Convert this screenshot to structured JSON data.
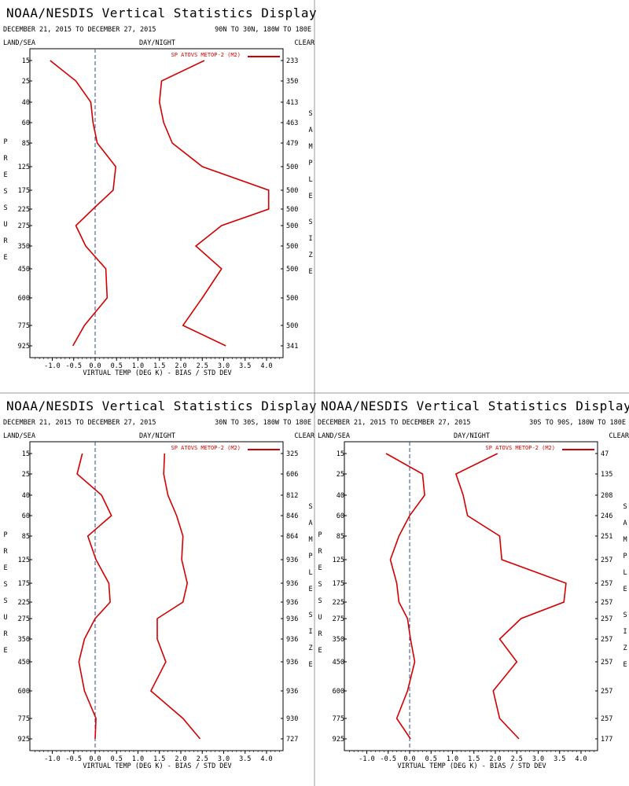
{
  "chart_data": [
    {
      "type": "line",
      "title": "NOAA/NESDIS Vertical Statistics Display",
      "date_range": "DECEMBER 21, 2015 TO DECEMBER 27, 2015",
      "region": "90N TO 30N, 180W TO 180E",
      "header_left": "LAND/SEA",
      "header_mid": "DAY/NIGHT",
      "header_right": "CLEAR",
      "ylabel": "PRESSURE",
      "right_label": "SAMPLE SIZE",
      "xlabel": "VIRTUAL TEMP (DEG K) - BIAS / STD DEV",
      "legend": "SP ATOVS METOP-2 (M2)",
      "legend_placement": "top-right",
      "xlim": [
        -1.5,
        4.5
      ],
      "x_ticks": [
        "-1.0",
        "-0.5",
        "0.0",
        "0.5",
        "1.0",
        "1.5",
        "2.0",
        "2.5",
        "3.0",
        "3.5",
        "4.0"
      ],
      "pressure_levels": [
        "15",
        "25",
        "40",
        "60",
        "85",
        "125",
        "175",
        "225",
        "275",
        "350",
        "450",
        "600",
        "775",
        "925"
      ],
      "sample_sizes": [
        "233",
        "350",
        "413",
        "463",
        "479",
        "500",
        "500",
        "500",
        "500",
        "500",
        "500",
        "500",
        "500",
        "341"
      ],
      "series": [
        {
          "values": [
            -1.05,
            -0.45,
            -0.1,
            -0.05,
            0.05,
            0.48,
            0.42,
            -0.05,
            -0.45,
            -0.22,
            0.25,
            0.28,
            -0.25,
            -0.52
          ]
        },
        {
          "values": [
            2.55,
            1.55,
            1.5,
            1.6,
            1.8,
            2.5,
            4.05,
            4.05,
            2.95,
            2.35,
            2.95,
            2.5,
            2.05,
            3.05
          ]
        }
      ],
      "color": "#d40000"
    },
    {
      "type": "line",
      "title": "NOAA/NESDIS Vertical Statistics Display",
      "date_range": "DECEMBER 21, 2015 TO DECEMBER 27, 2015",
      "region": "30N TO 30S, 180W TO 180E",
      "header_left": "LAND/SEA",
      "header_mid": "DAY/NIGHT",
      "header_right": "CLEAR",
      "ylabel": "PRESSURE",
      "right_label": "SAMPLE SIZE",
      "xlabel": "VIRTUAL TEMP (DEG K) - BIAS / STD DEV",
      "legend": "SP ATOVS METOP-2 (M2)",
      "legend_placement": "top-right",
      "xlim": [
        -1.5,
        4.5
      ],
      "x_ticks": [
        "-1.0",
        "-0.5",
        "0.0",
        "0.5",
        "1.0",
        "1.5",
        "2.0",
        "2.5",
        "3.0",
        "3.5",
        "4.0"
      ],
      "pressure_levels": [
        "15",
        "25",
        "40",
        "60",
        "85",
        "125",
        "175",
        "225",
        "275",
        "350",
        "450",
        "600",
        "775",
        "925"
      ],
      "sample_sizes": [
        "325",
        "606",
        "812",
        "846",
        "864",
        "936",
        "936",
        "936",
        "936",
        "936",
        "936",
        "936",
        "930",
        "727"
      ],
      "series": [
        {
          "values": [
            -0.3,
            -0.42,
            0.15,
            0.38,
            -0.17,
            0.02,
            0.32,
            0.35,
            0.0,
            -0.25,
            -0.38,
            -0.25,
            0.02,
            0.0
          ]
        },
        {
          "values": [
            1.62,
            1.6,
            1.7,
            1.9,
            2.05,
            2.02,
            2.15,
            2.05,
            1.45,
            1.45,
            1.65,
            1.3,
            2.05,
            2.45
          ]
        }
      ],
      "color": "#d40000"
    },
    {
      "type": "line",
      "title": "NOAA/NESDIS Vertical Statistics Display",
      "date_range": "DECEMBER 21, 2015 TO DECEMBER 27, 2015",
      "region": "30S TO 90S, 180W TO 180E",
      "header_left": "LAND/SEA",
      "header_mid": "DAY/NIGHT",
      "header_right": "CLEAR",
      "ylabel": "PRESSURE",
      "right_label": "SAMPLE SIZE",
      "xlabel": "VIRTUAL TEMP (DEG K) - BIAS / STD DEV",
      "legend": "SP ATOVS METOP-2 (M2)",
      "legend_placement": "top-right",
      "xlim": [
        -1.5,
        4.5
      ],
      "x_ticks": [
        "-1.0",
        "-0.5",
        "0.0",
        "0.5",
        "1.0",
        "1.5",
        "2.0",
        "2.5",
        "3.0",
        "3.5",
        "4.0"
      ],
      "pressure_levels": [
        "15",
        "25",
        "40",
        "60",
        "85",
        "125",
        "175",
        "225",
        "275",
        "350",
        "450",
        "600",
        "775",
        "925"
      ],
      "sample_sizes": [
        "47",
        "135",
        "208",
        "246",
        "251",
        "257",
        "257",
        "257",
        "257",
        "257",
        "257",
        "257",
        "257",
        "177"
      ],
      "series": [
        {
          "values": [
            -0.55,
            0.3,
            0.35,
            0.0,
            -0.25,
            -0.45,
            -0.3,
            -0.25,
            -0.05,
            0.02,
            0.12,
            -0.05,
            -0.3,
            0.02
          ]
        },
        {
          "values": [
            2.05,
            1.08,
            1.25,
            1.35,
            2.1,
            2.15,
            3.65,
            3.6,
            2.6,
            2.1,
            2.5,
            1.95,
            2.1,
            2.55
          ]
        }
      ],
      "color": "#d40000"
    }
  ]
}
